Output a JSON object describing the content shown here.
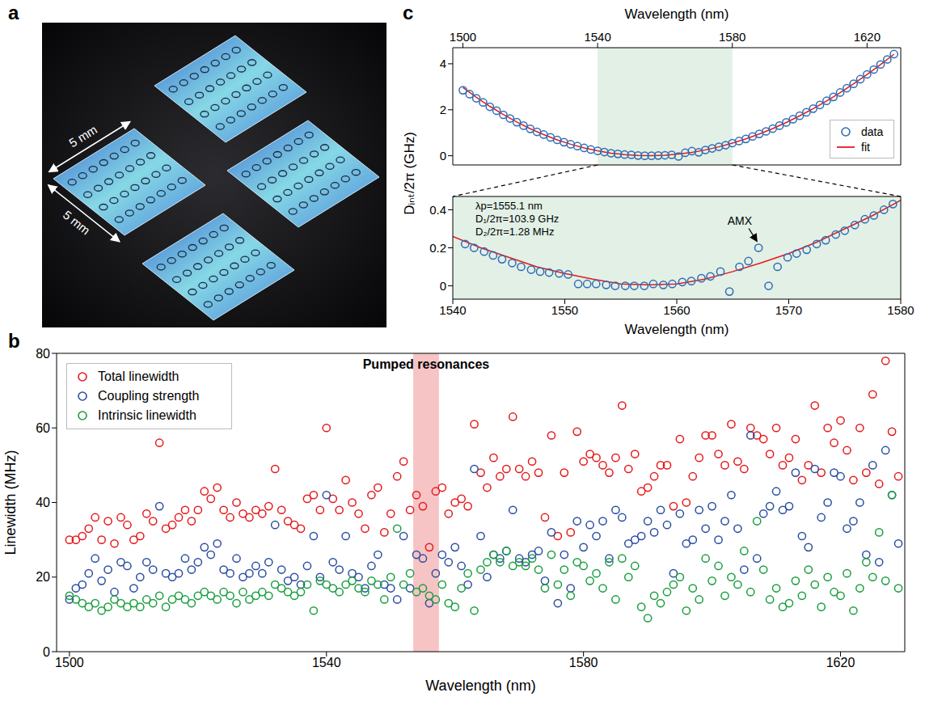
{
  "photo": {
    "panel": "a",
    "labels": [
      "5 mm",
      "5 mm"
    ]
  },
  "chart_data": [
    {
      "panel": "b",
      "type": "scatter",
      "x_label": "Wavelength (nm)",
      "y_label": "Linewidth (MHz)",
      "x": [
        1500,
        1501,
        1502,
        1503,
        1504,
        1505,
        1506,
        1507,
        1508,
        1509,
        1510,
        1511,
        1512,
        1513,
        1514,
        1515,
        1516,
        1517,
        1518,
        1519,
        1520,
        1521,
        1522,
        1523,
        1524,
        1525,
        1526,
        1527,
        1528,
        1529,
        1530,
        1531,
        1532,
        1533,
        1534,
        1535,
        1536,
        1537,
        1538,
        1539,
        1540,
        1541,
        1542,
        1543,
        1544,
        1545,
        1546,
        1547,
        1548,
        1549,
        1550,
        1551,
        1552,
        1553,
        1554,
        1555,
        1556,
        1557,
        1558,
        1559,
        1560,
        1561,
        1562,
        1563,
        1564,
        1565,
        1566,
        1567,
        1568,
        1569,
        1570,
        1571,
        1572,
        1573,
        1574,
        1575,
        1576,
        1577,
        1578,
        1579,
        1580,
        1581,
        1582,
        1583,
        1584,
        1585,
        1586,
        1587,
        1588,
        1589,
        1590,
        1591,
        1592,
        1593,
        1594,
        1595,
        1596,
        1597,
        1598,
        1599,
        1600,
        1601,
        1602,
        1603,
        1604,
        1605,
        1606,
        1607,
        1608,
        1609,
        1610,
        1611,
        1612,
        1613,
        1614,
        1615,
        1616,
        1617,
        1618,
        1619,
        1620,
        1621,
        1622,
        1623,
        1624,
        1625,
        1626,
        1627,
        1628,
        1629
      ],
      "series": [
        {
          "name": "Total linewidth",
          "color": "#e41a1c",
          "marker": "open_circle",
          "values": [
            30,
            30,
            31,
            33,
            36,
            30,
            35,
            29,
            36,
            34,
            30,
            31,
            37,
            35,
            56,
            33,
            34,
            36,
            38,
            35,
            38,
            43,
            41,
            44,
            38,
            36,
            40,
            37,
            36,
            38,
            37,
            39,
            49,
            38,
            35,
            34,
            33,
            41,
            42,
            38,
            60,
            41,
            38,
            46,
            40,
            37,
            33,
            42,
            44,
            32,
            37,
            47,
            51,
            38,
            42,
            39,
            28,
            43,
            44,
            37,
            40,
            41,
            39,
            61,
            48,
            44,
            52,
            47,
            49,
            63,
            49,
            47,
            51,
            48,
            36,
            58,
            31,
            48,
            32,
            59,
            51,
            53,
            52,
            50,
            48,
            52,
            66,
            49,
            53,
            43,
            44,
            47,
            50,
            50,
            39,
            57,
            40,
            47,
            52,
            58,
            58,
            53,
            50,
            61,
            51,
            49,
            60,
            58,
            57,
            53,
            60,
            50,
            52,
            57,
            46,
            50,
            66,
            48,
            60,
            56,
            62,
            54,
            46,
            60,
            48,
            69,
            45,
            78,
            59,
            47
          ]
        },
        {
          "name": "Coupling strength",
          "color": "#2b4ea2",
          "marker": "open_circle",
          "values": [
            14,
            17,
            18,
            21,
            25,
            19,
            22,
            16,
            24,
            23,
            17,
            20,
            24,
            22,
            39,
            21,
            20,
            21,
            25,
            22,
            24,
            28,
            26,
            29,
            22,
            21,
            25,
            20,
            21,
            23,
            21,
            24,
            34,
            22,
            19,
            20,
            18,
            23,
            31,
            20,
            42,
            24,
            22,
            31,
            21,
            20,
            17,
            23,
            26,
            18,
            17,
            14,
            31,
            17,
            26,
            25,
            13,
            21,
            26,
            24,
            28,
            23,
            18,
            49,
            31,
            20,
            26,
            25,
            27,
            38,
            25,
            24,
            26,
            27,
            19,
            32,
            13,
            26,
            17,
            35,
            28,
            34,
            31,
            35,
            25,
            38,
            36,
            29,
            30,
            31,
            35,
            32,
            38,
            34,
            21,
            37,
            29,
            30,
            38,
            33,
            39,
            30,
            35,
            42,
            33,
            22,
            58,
            25,
            37,
            39,
            43,
            38,
            39,
            48,
            31,
            28,
            49,
            36,
            40,
            48,
            47,
            33,
            35,
            40,
            26,
            50,
            24,
            54,
            42,
            29
          ]
        },
        {
          "name": "Intrinsic linewidth",
          "color": "#1a9e3f",
          "marker": "open_circle",
          "values": [
            15,
            14,
            13,
            12,
            13,
            11,
            12,
            14,
            13,
            12,
            13,
            12,
            14,
            13,
            15,
            12,
            14,
            15,
            14,
            13,
            15,
            16,
            15,
            14,
            16,
            15,
            13,
            16,
            14,
            15,
            16,
            15,
            18,
            17,
            16,
            15,
            16,
            18,
            11,
            19,
            18,
            17,
            16,
            18,
            19,
            17,
            16,
            19,
            18,
            14,
            20,
            33,
            18,
            21,
            16,
            17,
            15,
            14,
            18,
            13,
            12,
            17,
            21,
            11,
            22,
            24,
            26,
            24,
            27,
            23,
            24,
            23,
            25,
            22,
            17,
            26,
            18,
            22,
            15,
            24,
            23,
            19,
            21,
            17,
            24,
            14,
            25,
            20,
            23,
            12,
            9,
            15,
            13,
            16,
            18,
            20,
            11,
            17,
            14,
            25,
            19,
            23,
            15,
            20,
            18,
            27,
            16,
            35,
            22,
            14,
            17,
            12,
            13,
            19,
            15,
            22,
            18,
            12,
            20,
            16,
            15,
            21,
            11,
            17,
            24,
            20,
            32,
            19,
            42,
            17
          ]
        }
      ],
      "xlim": [
        1498,
        1630
      ],
      "xticks": [
        1500,
        1540,
        1580,
        1620
      ],
      "ylim": [
        0,
        80
      ],
      "yticks": [
        0,
        20,
        40,
        60,
        80
      ],
      "legend": "upper left",
      "annotations": [
        {
          "text": "Pumped resonances",
          "x1": 1553.5,
          "x2": 1557.5,
          "color": "#f6c4c4"
        }
      ]
    },
    {
      "panel": "c",
      "type": "scatter",
      "x_label": "Wavelength (nm)",
      "y_label": "Dᵢₙₜ/2π (GHz)",
      "series": [
        {
          "name": "data",
          "type": "scatter",
          "color": "#2f6db5",
          "marker": "open_circle",
          "x": [
            1500,
            1502,
            1504,
            1506,
            1508,
            1510,
            1512,
            1514,
            1516,
            1518,
            1520,
            1522,
            1524,
            1526,
            1528,
            1530,
            1532,
            1534,
            1536,
            1538,
            1540,
            1542,
            1544,
            1546,
            1548,
            1550,
            1552,
            1554,
            1556,
            1558,
            1560,
            1562,
            1564,
            1566,
            1568,
            1570,
            1572,
            1574,
            1576,
            1578,
            1580,
            1582,
            1584,
            1586,
            1588,
            1590,
            1592,
            1594,
            1596,
            1598,
            1600,
            1602,
            1604,
            1606,
            1608,
            1610,
            1612,
            1614,
            1616,
            1618,
            1620,
            1622,
            1624,
            1626,
            1628
          ],
          "values": [
            2.85,
            2.68,
            2.5,
            2.32,
            2.13,
            1.96,
            1.78,
            1.62,
            1.46,
            1.31,
            1.17,
            1.04,
            0.92,
            0.8,
            0.69,
            0.59,
            0.5,
            0.42,
            0.34,
            0.27,
            0.21,
            0.16,
            0.11,
            0.08,
            0.05,
            0.04,
            0.01,
            0,
            0,
            0.01,
            0.02,
            0.04,
            -0.03,
            0.13,
            0.2,
            0.15,
            0.25,
            0.32,
            0.39,
            0.46,
            0.55,
            0.64,
            0.73,
            0.84,
            0.95,
            1.06,
            1.18,
            1.31,
            1.45,
            1.59,
            1.74,
            1.89,
            2.05,
            2.21,
            2.39,
            2.56,
            2.75,
            2.94,
            3.13,
            3.33,
            3.54,
            3.75,
            3.97,
            4.19,
            4.42
          ]
        },
        {
          "name": "fit",
          "type": "line",
          "color": "#e41a1c",
          "line_style": "solid",
          "x": [
            1500,
            1504,
            1508,
            1512,
            1516,
            1520,
            1524,
            1528,
            1532,
            1536,
            1540,
            1544,
            1548,
            1552,
            1556,
            1560,
            1564,
            1568,
            1572,
            1576,
            1580,
            1584,
            1588,
            1592,
            1596,
            1600,
            1604,
            1608,
            1612,
            1616,
            1620,
            1624,
            1628
          ],
          "values": [
            2.974,
            2.544,
            2.15,
            1.791,
            1.466,
            1.175,
            0.918,
            0.693,
            0.501,
            0.341,
            0.212,
            0.114,
            0.046,
            0.009,
            0.001,
            0.022,
            0.071,
            0.149,
            0.255,
            0.387,
            0.547,
            0.733,
            0.946,
            1.184,
            1.447,
            1.736,
            2.048,
            2.385,
            2.746,
            3.13,
            3.537,
            3.967,
            4.419
          ]
        }
      ],
      "xlim": [
        1497,
        1630
      ],
      "xticks": [
        1500,
        1540,
        1580,
        1620
      ],
      "ylim": [
        -0.4,
        4.7
      ],
      "yticks": [
        0,
        2,
        4
      ],
      "legend": "lower right"
    },
    {
      "type": "scatter",
      "x_label": "Wavelength (nm)",
      "series": [
        {
          "name": "data",
          "type": "scatter",
          "color": "#2f6db5",
          "marker": "open_circle",
          "x": [
            1541.1,
            1541.9,
            1542.8,
            1543.6,
            1544.4,
            1545.3,
            1546.1,
            1547,
            1547.8,
            1548.6,
            1549.5,
            1550.3,
            1551.2,
            1552,
            1552.8,
            1553.7,
            1554.5,
            1555.4,
            1556.2,
            1557.1,
            1557.9,
            1558.8,
            1559.6,
            1560.5,
            1561.3,
            1562.2,
            1563,
            1563.9,
            1564.7,
            1565.6,
            1566.4,
            1567.3,
            1568.2,
            1569,
            1569.9,
            1570.7,
            1571.6,
            1572.5,
            1573.3,
            1574.2,
            1575,
            1575.9,
            1576.8,
            1577.6,
            1578.5,
            1579.3
          ],
          "values": [
            0.22,
            0.2,
            0.18,
            0.16,
            0.14,
            0.12,
            0.1,
            0.085,
            0.075,
            0.07,
            0.065,
            0.06,
            0.01,
            0.01,
            0.01,
            0.005,
            0,
            0,
            0,
            0,
            0.01,
            0.005,
            0.01,
            0.02,
            0.025,
            0.04,
            0.05,
            0.075,
            -0.03,
            0.1,
            0.13,
            0.2,
            0,
            0.1,
            0.15,
            0.17,
            0.19,
            0.22,
            0.24,
            0.27,
            0.29,
            0.32,
            0.35,
            0.37,
            0.4,
            0.43
          ]
        },
        {
          "name": "fit",
          "type": "line",
          "color": "#e41a1c",
          "line_style": "solid",
          "x": [
            1540,
            1542.5,
            1545,
            1547.5,
            1550,
            1552.5,
            1555,
            1557.5,
            1560,
            1562.5,
            1565,
            1567.5,
            1570,
            1572.5,
            1575,
            1577.5,
            1580
          ],
          "values": [
            0.26,
            0.2,
            0.15,
            0.1,
            0.065,
            0.035,
            0.01,
            0.005,
            0.01,
            0.035,
            0.075,
            0.12,
            0.17,
            0.23,
            0.3,
            0.37,
            0.45
          ]
        }
      ],
      "xlim": [
        1540,
        1580
      ],
      "xticks": [
        1540,
        1550,
        1560,
        1570,
        1580
      ],
      "ylim": [
        -0.07,
        0.47
      ],
      "yticks": [
        0,
        0.2,
        0.4
      ],
      "annotations": [
        {
          "text": "λp=1555.1 nm"
        },
        {
          "text": "D₁/2π=103.9 GHz"
        },
        {
          "text": "D₂/2π=1.28 MHz"
        },
        {
          "text": "AMX",
          "x": 1567.3,
          "y": 0.2
        }
      ]
    }
  ]
}
